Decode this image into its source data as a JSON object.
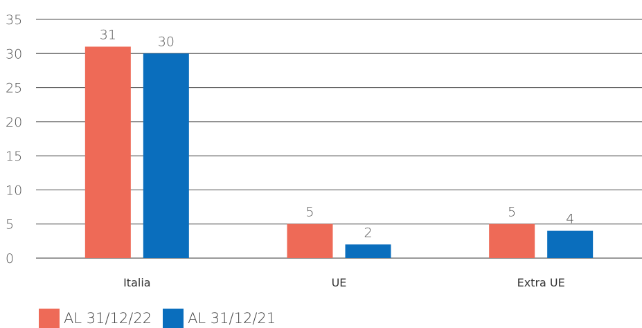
{
  "chart_data": {
    "type": "bar",
    "categories": [
      "Italia",
      "UE",
      "Extra UE"
    ],
    "series": [
      {
        "name": "AL 31/12/22",
        "color": "#EE6A57",
        "values": [
          31,
          5,
          5
        ]
      },
      {
        "name": "AL 31/12/21",
        "color": "#0A6EBD",
        "values": [
          30,
          2,
          4
        ]
      }
    ],
    "ylim": [
      0,
      35
    ],
    "yticks": [
      "0",
      "5",
      "10",
      "15",
      "20",
      "25",
      "30",
      "35"
    ],
    "grid": true,
    "legend": "bottom-left",
    "title": "",
    "xlabel": "",
    "ylabel": ""
  }
}
